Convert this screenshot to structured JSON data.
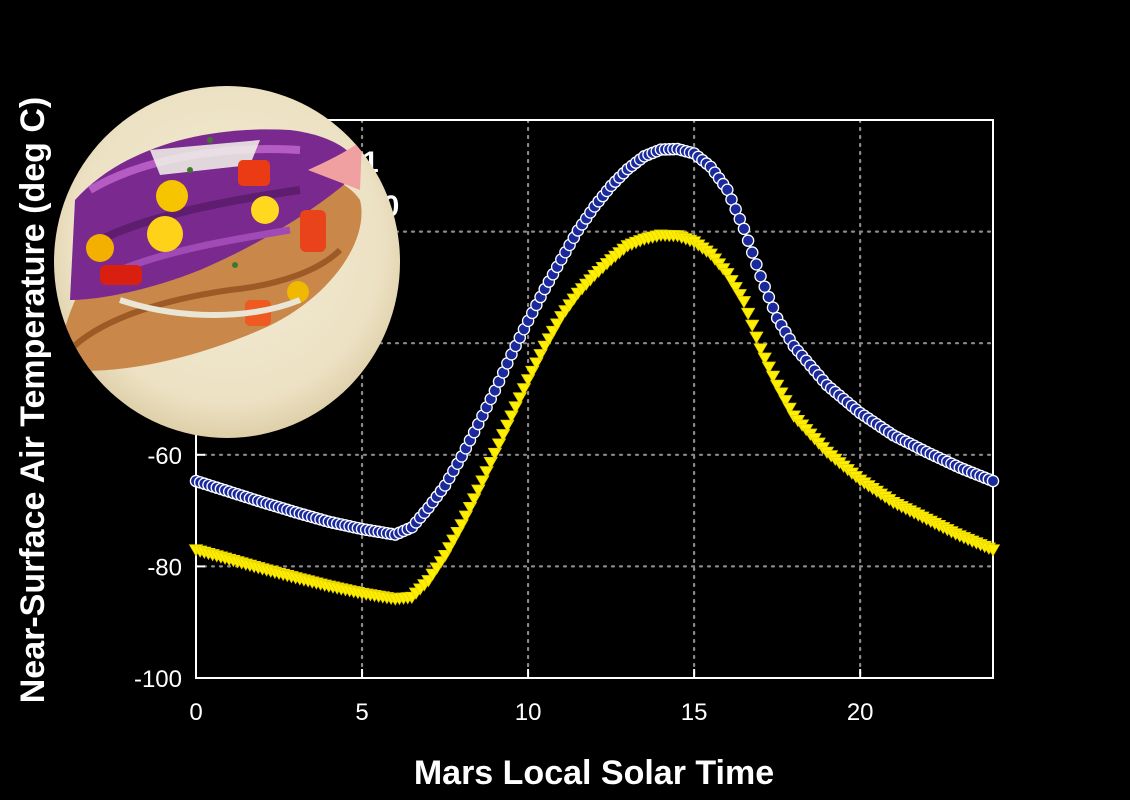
{
  "chart_data": {
    "type": "scatter",
    "xlabel": "Mars Local Solar Time",
    "ylabel": "Near-Surface Air Temperature  (deg C)",
    "xlim": [
      0,
      24
    ],
    "ylim": [
      -100,
      0
    ],
    "x_ticks": [
      "0",
      "5",
      "10",
      "15",
      "20"
    ],
    "y_ticks": [
      "-100",
      "-80",
      "-60"
    ],
    "grid": true,
    "legend_partial": [
      "1",
      "00"
    ],
    "series": [
      {
        "color_fill": "#1a2a9c",
        "color_edge": "#ffffff",
        "line_color": "#3fa9e8",
        "marker": "circle",
        "points": [
          [
            0,
            -64.7
          ],
          [
            1,
            -66.6
          ],
          [
            2,
            -68.5
          ],
          [
            3,
            -70.3
          ],
          [
            4,
            -72.0
          ],
          [
            5,
            -73.3
          ],
          [
            6,
            -74.3
          ],
          [
            6.5,
            -73.0
          ],
          [
            7,
            -69.5
          ],
          [
            7.5,
            -65.5
          ],
          [
            8,
            -60.3
          ],
          [
            8.5,
            -54.5
          ],
          [
            9,
            -48.5
          ],
          [
            9.5,
            -42.0
          ],
          [
            10,
            -36.0
          ],
          [
            10.5,
            -30.3
          ],
          [
            11,
            -25.0
          ],
          [
            11.5,
            -19.8
          ],
          [
            12,
            -15.5
          ],
          [
            12.5,
            -11.8
          ],
          [
            13,
            -8.8
          ],
          [
            13.5,
            -6.5
          ],
          [
            14,
            -5.3
          ],
          [
            14.5,
            -5.2
          ],
          [
            15,
            -6.0
          ],
          [
            15.5,
            -8.4
          ],
          [
            16,
            -12.5
          ],
          [
            16.5,
            -19.5
          ],
          [
            17,
            -28.0
          ],
          [
            17.5,
            -35.5
          ],
          [
            18,
            -40.5
          ],
          [
            19,
            -47.5
          ],
          [
            20,
            -52.5
          ],
          [
            21,
            -56.5
          ],
          [
            22,
            -59.5
          ],
          [
            23,
            -62.3
          ],
          [
            24,
            -64.7
          ]
        ]
      },
      {
        "color_fill": "#ffef00",
        "color_edge": "#e8d400",
        "marker": "triangle-down",
        "points": [
          [
            0,
            -77.0
          ],
          [
            1,
            -78.7
          ],
          [
            2,
            -80.4
          ],
          [
            3,
            -82.0
          ],
          [
            4,
            -83.5
          ],
          [
            5,
            -84.8
          ],
          [
            6,
            -85.8
          ],
          [
            6.5,
            -85.5
          ],
          [
            7,
            -82.5
          ],
          [
            7.5,
            -78.0
          ],
          [
            8,
            -72.5
          ],
          [
            8.5,
            -66.3
          ],
          [
            9,
            -59.7
          ],
          [
            9.5,
            -53.0
          ],
          [
            10,
            -46.5
          ],
          [
            10.5,
            -40.5
          ],
          [
            11,
            -35.2
          ],
          [
            11.5,
            -31.0
          ],
          [
            12,
            -27.8
          ],
          [
            12.5,
            -25.0
          ],
          [
            13,
            -22.5
          ],
          [
            13.5,
            -21.3
          ],
          [
            14,
            -20.6
          ],
          [
            14.5,
            -20.7
          ],
          [
            15,
            -21.8
          ],
          [
            15.5,
            -24.0
          ],
          [
            16,
            -27.5
          ],
          [
            16.5,
            -32.5
          ],
          [
            17,
            -41.0
          ],
          [
            17.5,
            -47.5
          ],
          [
            18,
            -53.0
          ],
          [
            19,
            -59.5
          ],
          [
            20,
            -64.5
          ],
          [
            21,
            -68.5
          ],
          [
            22,
            -71.5
          ],
          [
            23,
            -74.5
          ],
          [
            24,
            -77.0
          ]
        ]
      }
    ]
  }
}
